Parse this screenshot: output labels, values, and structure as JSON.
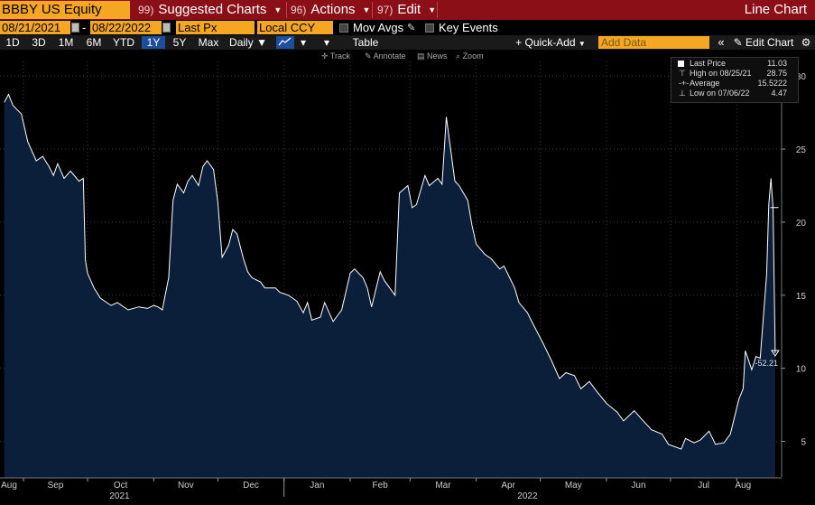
{
  "header": {
    "ticker": "BBBY US Equity",
    "menus": [
      {
        "num": "99)",
        "label": "Suggested Charts"
      },
      {
        "num": "96)",
        "label": "Actions"
      },
      {
        "num": "97)",
        "label": "Edit"
      }
    ],
    "chart_type": "Line Chart"
  },
  "controls": {
    "start_date": "08/21/2021",
    "date_sep": "-",
    "end_date": "08/22/2022",
    "field": "Last Px",
    "currency": "Local CCY",
    "mov_avgs": "Mov Avgs",
    "key_events": "Key Events"
  },
  "toolbar": {
    "ranges": [
      "1D",
      "3D",
      "1M",
      "6M",
      "YTD",
      "1Y",
      "5Y",
      "Max"
    ],
    "selected_range": "1Y",
    "frequency": "Daily",
    "table": "Table",
    "quick_add": "Quick-Add",
    "add_data_placeholder": "Add Data",
    "edit_chart": "Edit Chart"
  },
  "tools": {
    "track": "Track",
    "annotate": "Annotate",
    "news": "News",
    "zoom": "Zoom"
  },
  "legend": {
    "last_price_label": "Last Price",
    "last_price": "11.03",
    "high_label": "High on 08/25/21",
    "high": "28.75",
    "average_label": "Average",
    "average": "15.5222",
    "low_label": "Low on 07/06/22",
    "low": "4.47"
  },
  "colors": {
    "accent": "#f5a623",
    "header_red": "#8b0f17",
    "area_fill": "#0b1f3a",
    "line": "#ffffff"
  },
  "chart_data": {
    "type": "area",
    "title": "",
    "xlabel": "",
    "ylabel": "",
    "ylim": [
      2.5,
      31
    ],
    "yticks": [
      "5",
      "10",
      "15",
      "20",
      "25",
      "30"
    ],
    "month_labels": [
      "Aug",
      "Sep",
      "Oct",
      "Nov",
      "Dec",
      "Jan",
      "Feb",
      "Mar",
      "Apr",
      "May",
      "Jun",
      "Jul",
      "Aug"
    ],
    "year_labels": [
      "2021",
      "2022"
    ],
    "last_marker_label": "-52.21",
    "series": [
      {
        "x": [
          "2021-08-23",
          "2021-08-25",
          "2021-08-27",
          "2021-08-31",
          "2021-09-03",
          "2021-09-07",
          "2021-09-10",
          "2021-09-13",
          "2021-09-15",
          "2021-09-17",
          "2021-09-20",
          "2021-09-23",
          "2021-09-27",
          "2021-09-29",
          "2021-09-30",
          "2021-10-01",
          "2021-10-04",
          "2021-10-07",
          "2021-10-12",
          "2021-10-15",
          "2021-10-20",
          "2021-10-25",
          "2021-10-29",
          "2021-11-01",
          "2021-11-03",
          "2021-11-05",
          "2021-11-08",
          "2021-11-10",
          "2021-11-12",
          "2021-11-15",
          "2021-11-17",
          "2021-11-19",
          "2021-11-22",
          "2021-11-24",
          "2021-11-26",
          "2021-11-29",
          "2021-12-01",
          "2021-12-03",
          "2021-12-06",
          "2021-12-08",
          "2021-12-10",
          "2021-12-13",
          "2021-12-15",
          "2021-12-17",
          "2021-12-21",
          "2021-12-23",
          "2021-12-28",
          "2021-12-30",
          "2022-01-03",
          "2022-01-05",
          "2022-01-07",
          "2022-01-10",
          "2022-01-12",
          "2022-01-14",
          "2022-01-18",
          "2022-01-20",
          "2022-01-24",
          "2022-01-26",
          "2022-01-28",
          "2022-02-01",
          "2022-02-03",
          "2022-02-07",
          "2022-02-09",
          "2022-02-11",
          "2022-02-15",
          "2022-02-17",
          "2022-02-22",
          "2022-02-24",
          "2022-02-28",
          "2022-03-02",
          "2022-03-04",
          "2022-03-08",
          "2022-03-10",
          "2022-03-14",
          "2022-03-16",
          "2022-03-18",
          "2022-03-22",
          "2022-03-24",
          "2022-03-28",
          "2022-03-30",
          "2022-04-01",
          "2022-04-05",
          "2022-04-08",
          "2022-04-12",
          "2022-04-14",
          "2022-04-19",
          "2022-04-21",
          "2022-04-25",
          "2022-04-27",
          "2022-05-02",
          "2022-05-06",
          "2022-05-10",
          "2022-05-13",
          "2022-05-17",
          "2022-05-20",
          "2022-05-24",
          "2022-05-27",
          "2022-06-01",
          "2022-06-06",
          "2022-06-09",
          "2022-06-14",
          "2022-06-17",
          "2022-06-22",
          "2022-06-27",
          "2022-06-30",
          "2022-07-06",
          "2022-07-08",
          "2022-07-12",
          "2022-07-15",
          "2022-07-19",
          "2022-07-22",
          "2022-07-26",
          "2022-07-29",
          "2022-08-02",
          "2022-08-04",
          "2022-08-05",
          "2022-08-08",
          "2022-08-10",
          "2022-08-12",
          "2022-08-15",
          "2022-08-16",
          "2022-08-17",
          "2022-08-18",
          "2022-08-19"
        ],
        "values": [
          28.2,
          28.75,
          28.0,
          27.4,
          25.5,
          24.2,
          24.5,
          23.8,
          23.2,
          24.0,
          23.0,
          23.5,
          22.8,
          23.0,
          17.4,
          16.5,
          15.5,
          14.8,
          14.3,
          14.5,
          14.0,
          14.2,
          14.1,
          14.3,
          14.2,
          14.0,
          16.2,
          21.5,
          22.6,
          22.0,
          22.8,
          23.2,
          22.5,
          23.8,
          24.2,
          23.6,
          21.4,
          17.6,
          18.4,
          19.5,
          19.2,
          17.5,
          16.6,
          16.2,
          15.9,
          15.5,
          15.5,
          15.2,
          15.0,
          14.8,
          14.6,
          13.8,
          14.5,
          13.3,
          13.5,
          14.5,
          13.2,
          13.6,
          14.0,
          16.5,
          16.8,
          16.2,
          15.5,
          14.2,
          16.6,
          16.0,
          15.0,
          22.0,
          22.5,
          21.0,
          21.2,
          23.2,
          22.5,
          23.0,
          22.6,
          27.2,
          22.8,
          22.5,
          21.5,
          19.8,
          18.5,
          17.8,
          17.5,
          16.8,
          17.0,
          15.5,
          14.5,
          13.8,
          13.2,
          11.8,
          10.6,
          9.3,
          9.7,
          9.5,
          8.6,
          9.1,
          8.5,
          7.6,
          7.0,
          6.4,
          7.1,
          6.6,
          5.8,
          5.5,
          4.8,
          4.47,
          5.2,
          4.9,
          5.1,
          5.7,
          4.8,
          4.9,
          5.5,
          7.9,
          8.6,
          11.2,
          9.9,
          10.8,
          10.7,
          16.4,
          21.2,
          23.0,
          21.0,
          11.03
        ]
      }
    ]
  }
}
